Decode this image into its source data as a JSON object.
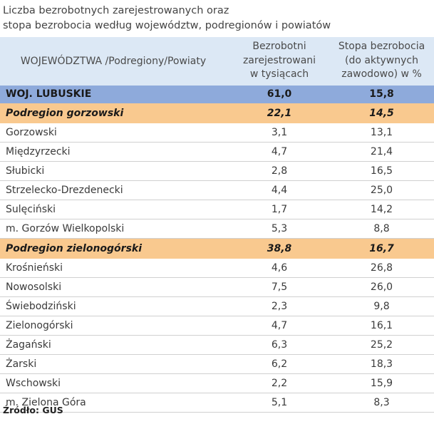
{
  "title": {
    "line1": "Liczba bezrobotnych zarejestrowanych oraz",
    "line2": "stopa bezrobocia według województw, podregionów  i  powiatów"
  },
  "header": {
    "col1": "WOJEWÓDZTWA /Podregiony/Powiaty",
    "col2": [
      "Bezrobotni",
      "zarejestrowani",
      "w tysiącach"
    ],
    "col3": [
      "Stopa bezrobocia",
      "(do aktywnych",
      "zawodowo) w %"
    ]
  },
  "rows": [
    {
      "name": "WOJ. LUBUSKIE",
      "unemployed": "61,0",
      "rate": "15,8"
    },
    {
      "name": "Podregion gorzowski",
      "unemployed": "22,1",
      "rate": "14,5"
    },
    {
      "name": "Gorzowski",
      "unemployed": "3,1",
      "rate": "13,1"
    },
    {
      "name": "Międzyrzecki",
      "unemployed": "4,7",
      "rate": "21,4"
    },
    {
      "name": "Słubicki",
      "unemployed": "2,8",
      "rate": "16,5"
    },
    {
      "name": "Strzelecko-Drezdenecki",
      "unemployed": "4,4",
      "rate": "25,0"
    },
    {
      "name": "Sulęciński",
      "unemployed": "1,7",
      "rate": "14,2"
    },
    {
      "name": "m. Gorzów Wielkopolski",
      "unemployed": "5,3",
      "rate": "8,8"
    },
    {
      "name": "Podregion zielonogórski",
      "unemployed": "38,8",
      "rate": "16,7"
    },
    {
      "name": "Krośnieński",
      "unemployed": "4,6",
      "rate": "26,8"
    },
    {
      "name": "Nowosolski",
      "unemployed": "7,5",
      "rate": "26,0"
    },
    {
      "name": "Świebodziński",
      "unemployed": "2,3",
      "rate": "9,8"
    },
    {
      "name": "Zielonogórski",
      "unemployed": "4,7",
      "rate": "16,1"
    },
    {
      "name": "Żagański",
      "unemployed": "6,3",
      "rate": "25,2"
    },
    {
      "name": "Żarski",
      "unemployed": "6,2",
      "rate": "18,3"
    },
    {
      "name": "Wschowski",
      "unemployed": "2,2",
      "rate": "15,9"
    },
    {
      "name": "m. Zielona Góra",
      "unemployed": "5,1",
      "rate": "8,3"
    }
  ],
  "source": "Źródło: GUS",
  "colors": {
    "voivodeship_bg": "#8eaadb",
    "subregion_bg": "#f9c98f",
    "header_bg": "#dce8f5"
  }
}
